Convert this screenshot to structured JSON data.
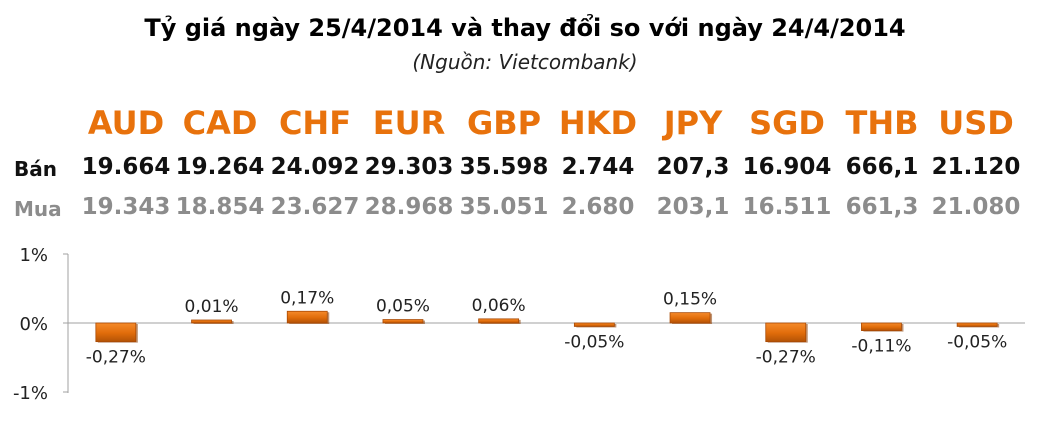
{
  "header": {
    "title": "Tỷ giá ngày 25/4/2014 và thay đổi so với ngày 24/4/2014",
    "subtitle": "(Nguồn: Vietcombank)"
  },
  "table": {
    "sell_label": "Bán",
    "buy_label": "Mua",
    "currencies": [
      "AUD",
      "CAD",
      "CHF",
      "EUR",
      "GBP",
      "HKD",
      "JPY",
      "SGD",
      "THB",
      "USD"
    ],
    "sell": [
      "19.664",
      "19.264",
      "24.092",
      "29.303",
      "35.598",
      "2.744",
      "207,3",
      "16.904",
      "666,1",
      "21.120"
    ],
    "buy": [
      "19.343",
      "18.854",
      "23.627",
      "28.968",
      "35.051",
      "2.680",
      "203,1",
      "16.511",
      "661,3",
      "21.080"
    ]
  },
  "colors": {
    "currency": "#e8720c",
    "bar_fill": "#e8720c",
    "bar_dark": "#a94a05",
    "sell_text": "#111111",
    "buy_text": "#8c8c8c"
  },
  "chart_data": {
    "type": "bar",
    "categories": [
      "AUD",
      "CAD",
      "CHF",
      "EUR",
      "GBP",
      "HKD",
      "JPY",
      "SGD",
      "THB",
      "USD"
    ],
    "values": [
      -0.27,
      0.01,
      0.17,
      0.05,
      0.06,
      -0.05,
      0.15,
      -0.27,
      -0.11,
      -0.05
    ],
    "data_labels": [
      "-0,27%",
      "0,01%",
      "0,17%",
      "0,05%",
      "0,06%",
      "-0,05%",
      "0,15%",
      "-0,27%",
      "-0,11%",
      "-0,05%"
    ],
    "ylim": [
      -1,
      1
    ],
    "yticks": [
      1,
      0,
      -1
    ],
    "ytick_labels": [
      "1%",
      "0%",
      "-1%"
    ],
    "grid": false
  }
}
